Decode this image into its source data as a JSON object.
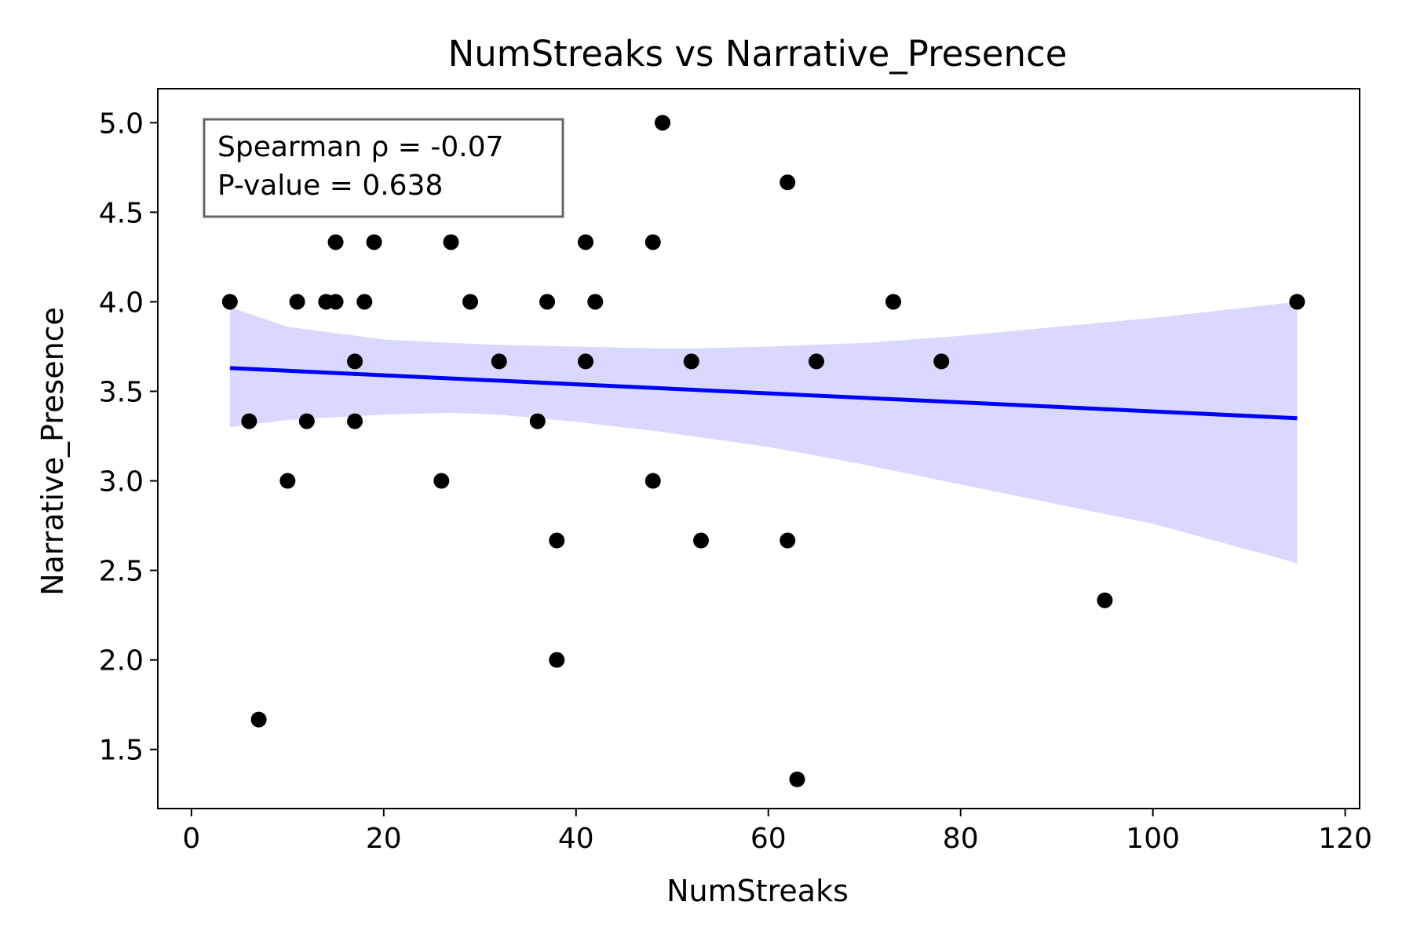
{
  "chart_data": {
    "type": "scatter",
    "title": "NumStreaks vs Narrative_Presence",
    "xlabel": "NumStreaks",
    "ylabel": "Narrative_Presence",
    "xlim": [
      -3.5,
      121.5
    ],
    "ylim": [
      1.17,
      5.19
    ],
    "xticks": [
      0,
      20,
      40,
      60,
      80,
      100,
      120
    ],
    "xtick_labels": [
      "0",
      "20",
      "40",
      "60",
      "80",
      "100",
      "120"
    ],
    "yticks": [
      1.5,
      2.0,
      2.5,
      3.0,
      3.5,
      4.0,
      4.5,
      5.0
    ],
    "ytick_labels": [
      "1.5",
      "2.0",
      "2.5",
      "3.0",
      "3.5",
      "4.0",
      "4.5",
      "5.0"
    ],
    "grid": false,
    "points": {
      "x": [
        4,
        6,
        7,
        10,
        11,
        12,
        14,
        15,
        15,
        17,
        17,
        18,
        19,
        26,
        27,
        29,
        32,
        36,
        37,
        38,
        38,
        41,
        41,
        42,
        48,
        48,
        49,
        52,
        53,
        62,
        62,
        63,
        65,
        73,
        78,
        95,
        115
      ],
      "y": [
        4.0,
        3.333,
        1.667,
        3.0,
        4.0,
        3.333,
        4.0,
        4.333,
        4.0,
        3.667,
        3.333,
        4.0,
        4.333,
        3.0,
        4.333,
        4.0,
        3.667,
        3.333,
        4.0,
        2.667,
        2.0,
        4.333,
        3.667,
        4.0,
        3.0,
        4.333,
        5.0,
        3.667,
        2.667,
        4.667,
        2.667,
        1.333,
        3.667,
        4.0,
        3.667,
        2.333,
        4.0
      ]
    },
    "regression_line": {
      "x": [
        4,
        115
      ],
      "y": [
        3.63,
        3.35
      ]
    },
    "confidence_band": {
      "x": [
        4,
        10,
        20,
        27,
        32,
        40,
        48,
        52,
        60,
        70,
        80,
        90,
        100,
        115
      ],
      "lower": [
        3.3,
        3.34,
        3.37,
        3.38,
        3.37,
        3.33,
        3.28,
        3.25,
        3.19,
        3.09,
        2.98,
        2.87,
        2.76,
        2.54
      ],
      "upper": [
        3.97,
        3.86,
        3.79,
        3.77,
        3.76,
        3.75,
        3.74,
        3.74,
        3.75,
        3.77,
        3.81,
        3.86,
        3.91,
        4.0
      ]
    },
    "colors": {
      "points": "#000000",
      "regression_line": "#0000ff",
      "confidence_band": "#d9d9ff",
      "annotation_border": "#666666"
    },
    "annotation": {
      "lines": [
        "Spearman ρ = -0.07",
        "P-value = 0.638"
      ],
      "placement": "top-left"
    }
  }
}
